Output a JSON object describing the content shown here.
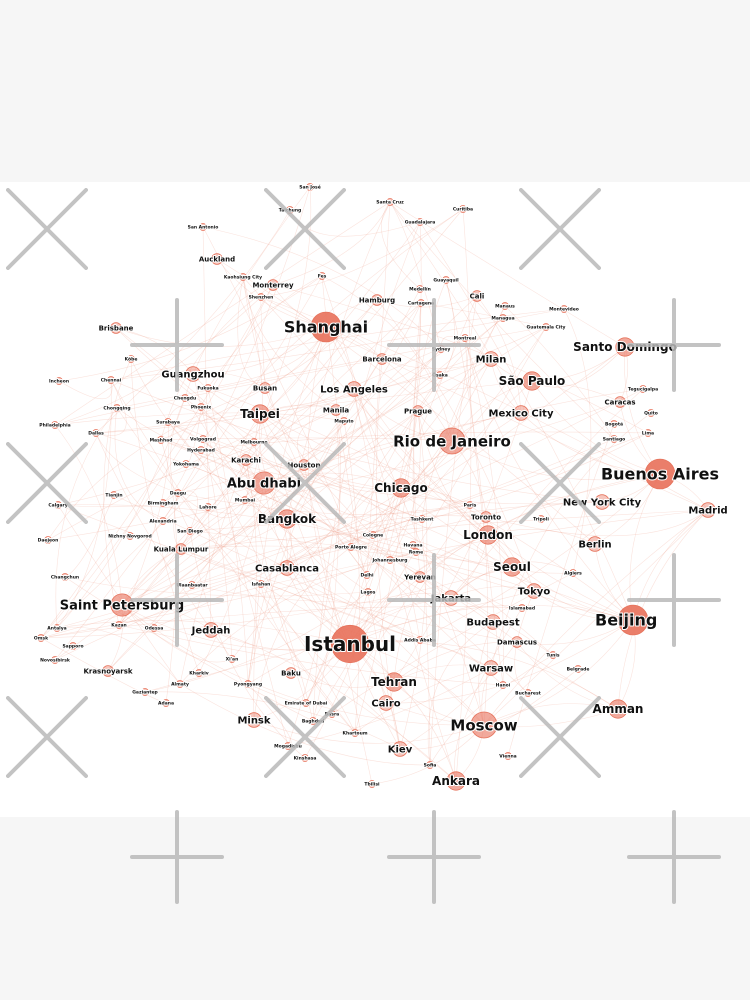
{
  "diagram": {
    "type": "network-graph",
    "node_color": "#e8705a",
    "edge_color": "#ec9a86",
    "background": "#ffffff",
    "page_background": "#f6f6f6",
    "watermark_icon": "cross-mark-icon",
    "nodes": [
      {
        "id": "istanbul",
        "label": "Istanbul",
        "size": 10
      },
      {
        "id": "shanghai",
        "label": "Shanghai",
        "size": 8
      },
      {
        "id": "beijing",
        "label": "Beijing",
        "size": 8
      },
      {
        "id": "buenos-aires",
        "label": "Buenos Aires",
        "size": 8
      },
      {
        "id": "moscow",
        "label": "Moscow",
        "size": 7
      },
      {
        "id": "rio-de-janeiro",
        "label": "Rio de Janeiro",
        "size": 7
      },
      {
        "id": "saint-petersburg",
        "label": "Saint Petersburg",
        "size": 6
      },
      {
        "id": "abu-dhabi",
        "label": "Abu dhabi",
        "size": 6
      },
      {
        "id": "amman",
        "label": "Amman",
        "size": 5
      },
      {
        "id": "bangkok",
        "label": "Bangkok",
        "size": 5
      },
      {
        "id": "chicago",
        "label": "Chicago",
        "size": 5
      },
      {
        "id": "london",
        "label": "London",
        "size": 5
      },
      {
        "id": "sao-paulo",
        "label": "São Paulo",
        "size": 5
      },
      {
        "id": "santo-domingo",
        "label": "Santo Domingo",
        "size": 5
      },
      {
        "id": "seoul",
        "label": "Seoul",
        "size": 5
      },
      {
        "id": "tehran",
        "label": "Tehran",
        "size": 5
      },
      {
        "id": "ankara",
        "label": "Ankara",
        "size": 5
      },
      {
        "id": "taipei",
        "label": "Taipei",
        "size": 5
      },
      {
        "id": "jakarta",
        "label": "Jakarta",
        "size": 4
      },
      {
        "id": "jeddah",
        "label": "Jeddah",
        "size": 4
      },
      {
        "id": "berlin",
        "label": "Berlin",
        "size": 4
      },
      {
        "id": "guangzhou",
        "label": "Guangzhou",
        "size": 4
      },
      {
        "id": "mexico-city",
        "label": "Mexico City",
        "size": 4
      },
      {
        "id": "milan",
        "label": "Milan",
        "size": 4
      },
      {
        "id": "los-angeles",
        "label": "Los Angeles",
        "size": 4
      },
      {
        "id": "casablanca",
        "label": "Casablanca",
        "size": 4
      },
      {
        "id": "warsaw",
        "label": "Warsaw",
        "size": 4
      },
      {
        "id": "budapest",
        "label": "Budapest",
        "size": 4
      },
      {
        "id": "madrid",
        "label": "Madrid",
        "size": 4
      },
      {
        "id": "tokyo",
        "label": "Tokyo",
        "size": 4
      },
      {
        "id": "minsk",
        "label": "Minsk",
        "size": 4
      },
      {
        "id": "kiev",
        "label": "Kiev",
        "size": 4
      },
      {
        "id": "cairo",
        "label": "Cairo",
        "size": 4
      },
      {
        "id": "new-york-city",
        "label": "New York City",
        "size": 4
      },
      {
        "id": "kuala-lumpur",
        "label": "Kuala Lumpur",
        "size": 3
      },
      {
        "id": "damascus",
        "label": "Damascus",
        "size": 3
      },
      {
        "id": "yerevan",
        "label": "Yerevan",
        "size": 3
      },
      {
        "id": "baku",
        "label": "Baku",
        "size": 3
      },
      {
        "id": "barcelona",
        "label": "Barcelona",
        "size": 3
      },
      {
        "id": "busan",
        "label": "Busan",
        "size": 3
      },
      {
        "id": "karachi",
        "label": "Karachi",
        "size": 3
      },
      {
        "id": "manila",
        "label": "Manila",
        "size": 3
      },
      {
        "id": "brisbane",
        "label": "Brisbane",
        "size": 3
      },
      {
        "id": "caracas",
        "label": "Caracas",
        "size": 3
      },
      {
        "id": "toronto",
        "label": "Toronto",
        "size": 3
      },
      {
        "id": "houston",
        "label": "Houston",
        "size": 3
      },
      {
        "id": "auckland",
        "label": "Auckland",
        "size": 3
      },
      {
        "id": "monterrey",
        "label": "Monterrey",
        "size": 3
      },
      {
        "id": "hamburg",
        "label": "Hamburg",
        "size": 3
      },
      {
        "id": "cali",
        "label": "Cali",
        "size": 3
      },
      {
        "id": "krasnoyarsk",
        "label": "Krasnoyarsk",
        "size": 3
      },
      {
        "id": "prague",
        "label": "Prague",
        "size": 3
      },
      {
        "id": "tbilisi",
        "label": "Tbilisi",
        "size": 2
      },
      {
        "id": "bucharest",
        "label": "Bucharest",
        "size": 2
      },
      {
        "id": "vienna",
        "label": "Vienna",
        "size": 2
      },
      {
        "id": "sofia",
        "label": "Sofia",
        "size": 2
      },
      {
        "id": "khartoum",
        "label": "Khartoum",
        "size": 2
      },
      {
        "id": "baghdad",
        "label": "Baghdad",
        "size": 2
      },
      {
        "id": "emirate-of-dubai",
        "label": "Emirate of Dubai",
        "size": 2
      },
      {
        "id": "isfahan",
        "label": "Isfahan",
        "size": 2
      },
      {
        "id": "lagos",
        "label": "Lagos",
        "size": 2
      },
      {
        "id": "delhi",
        "label": "Delhi",
        "size": 2
      },
      {
        "id": "havana",
        "label": "Havana",
        "size": 2
      },
      {
        "id": "cologne",
        "label": "Cologne",
        "size": 2
      },
      {
        "id": "johannesburg",
        "label": "Johannesburg",
        "size": 2
      },
      {
        "id": "tashkent",
        "label": "Tashkent",
        "size": 2
      },
      {
        "id": "paris",
        "label": "Paris",
        "size": 2
      },
      {
        "id": "tripoli",
        "label": "Tripoli",
        "size": 2
      },
      {
        "id": "algiers",
        "label": "Algiers",
        "size": 2
      },
      {
        "id": "islamabad",
        "label": "Islamabad",
        "size": 2
      },
      {
        "id": "tunis",
        "label": "Tunis",
        "size": 2
      },
      {
        "id": "belgrade",
        "label": "Belgrade",
        "size": 2
      },
      {
        "id": "hanoi",
        "label": "Hanoi",
        "size": 2
      },
      {
        "id": "santiago",
        "label": "Santiago",
        "size": 2
      },
      {
        "id": "bogota",
        "label": "Bogotá",
        "size": 2
      },
      {
        "id": "quito",
        "label": "Quito",
        "size": 2
      },
      {
        "id": "lima",
        "label": "Lima",
        "size": 2
      },
      {
        "id": "tegucigalpa",
        "label": "Tegucigalpa",
        "size": 2
      },
      {
        "id": "guatemala-city",
        "label": "Guatemala City",
        "size": 2
      },
      {
        "id": "montevideo",
        "label": "Montevideo",
        "size": 2
      },
      {
        "id": "montreal",
        "label": "Montreal",
        "size": 2
      },
      {
        "id": "sydney",
        "label": "Sydney",
        "size": 2
      },
      {
        "id": "osaka",
        "label": "Ōsaka",
        "size": 2
      },
      {
        "id": "managua",
        "label": "Managua",
        "size": 2
      },
      {
        "id": "manaus",
        "label": "Manaus",
        "size": 2
      },
      {
        "id": "medellin",
        "label": "Medellín",
        "size": 2
      },
      {
        "id": "guayaquil",
        "label": "Guayaquil",
        "size": 2
      },
      {
        "id": "cartagena",
        "label": "Cartagena",
        "size": 2
      },
      {
        "id": "curitiba",
        "label": "Curitiba",
        "size": 2
      },
      {
        "id": "guadalajara",
        "label": "Guadalajara",
        "size": 2
      },
      {
        "id": "santa-cruz",
        "label": "Santa Cruz",
        "size": 2
      },
      {
        "id": "san-jose",
        "label": "San José",
        "size": 2
      },
      {
        "id": "san-antonio",
        "label": "San Antonio",
        "size": 2
      },
      {
        "id": "taichung",
        "label": "Taichung",
        "size": 2
      },
      {
        "id": "kaohsiung",
        "label": "Kaohsiung City",
        "size": 2
      },
      {
        "id": "fes",
        "label": "Fes",
        "size": 2
      },
      {
        "id": "shenzhen",
        "label": "Shenzhen",
        "size": 2
      },
      {
        "id": "xian",
        "label": "Xi'an",
        "size": 2
      },
      {
        "id": "pyongyang",
        "label": "Pyongyang",
        "size": 2
      },
      {
        "id": "kharkiv",
        "label": "Kharkiv",
        "size": 2
      },
      {
        "id": "almaty",
        "label": "Almaty",
        "size": 2
      },
      {
        "id": "adana",
        "label": "Adana",
        "size": 2
      },
      {
        "id": "odessa",
        "label": "Odessa",
        "size": 2
      },
      {
        "id": "kazan",
        "label": "Kazan",
        "size": 2
      },
      {
        "id": "antalya",
        "label": "Antalya",
        "size": 2
      },
      {
        "id": "omsk",
        "label": "Omsk",
        "size": 2
      },
      {
        "id": "novosibirsk",
        "label": "Novosibirsk",
        "size": 2
      },
      {
        "id": "ulaanbaatar",
        "label": "Ulaanbaatar",
        "size": 2
      },
      {
        "id": "daejeon",
        "label": "Daejeon",
        "size": 2
      },
      {
        "id": "changchun",
        "label": "Changchun",
        "size": 2
      },
      {
        "id": "calgary",
        "label": "Calgary",
        "size": 2
      },
      {
        "id": "tianjin",
        "label": "Tianjin",
        "size": 2
      },
      {
        "id": "nizhny",
        "label": "Nizhny Novgorod",
        "size": 2
      },
      {
        "id": "alexandria",
        "label": "Alexandria",
        "size": 2
      },
      {
        "id": "birmingham",
        "label": "Birmingham",
        "size": 2
      },
      {
        "id": "san-diego",
        "label": "San Diego",
        "size": 2
      },
      {
        "id": "daegu",
        "label": "Daegu",
        "size": 2
      },
      {
        "id": "mumbai",
        "label": "Mumbai",
        "size": 2
      },
      {
        "id": "lahore",
        "label": "Lahore",
        "size": 2
      },
      {
        "id": "mashhad",
        "label": "Mashhad",
        "size": 2
      },
      {
        "id": "volgograd",
        "label": "Volgograd",
        "size": 2
      },
      {
        "id": "hyderabad",
        "label": "Hyderabad",
        "size": 2
      },
      {
        "id": "yokohama",
        "label": "Yokohama",
        "size": 2
      },
      {
        "id": "dallas",
        "label": "Dallas",
        "size": 2
      },
      {
        "id": "philadelphia",
        "label": "Philadelphia",
        "size": 2
      },
      {
        "id": "chongqing",
        "label": "Chongqing",
        "size": 2
      },
      {
        "id": "chennai",
        "label": "Chennai",
        "size": 2
      },
      {
        "id": "incheon",
        "label": "Incheon",
        "size": 2
      },
      {
        "id": "kobe",
        "label": "Kōbe",
        "size": 2
      },
      {
        "id": "surabaya",
        "label": "Surabaya",
        "size": 2
      },
      {
        "id": "phoenix",
        "label": "Phoenix",
        "size": 2
      },
      {
        "id": "chengdu",
        "label": "Chengdu",
        "size": 2
      },
      {
        "id": "fukuoka",
        "label": "Fukuoka",
        "size": 2
      },
      {
        "id": "melbourne",
        "label": "Melbourne",
        "size": 2
      },
      {
        "id": "maputo",
        "label": "Maputo",
        "size": 2
      },
      {
        "id": "rome",
        "label": "Rome",
        "size": 2
      },
      {
        "id": "porto-alegre",
        "label": "Porto Alegre",
        "size": 2
      },
      {
        "id": "addis-ababa",
        "label": "Addis Ababa",
        "size": 2
      },
      {
        "id": "mogadishu",
        "label": "Mogadishu",
        "size": 2
      },
      {
        "id": "kinshasa",
        "label": "Kinshasa",
        "size": 2
      },
      {
        "id": "basra",
        "label": "Basra",
        "size": 2
      },
      {
        "id": "sapporo",
        "label": "Sapporo",
        "size": 2
      },
      {
        "id": "gaziantep",
        "label": "Gaziantep",
        "size": 2
      }
    ],
    "edges": [
      [
        "istanbul",
        "beijing"
      ],
      [
        "istanbul",
        "moscow"
      ],
      [
        "istanbul",
        "shanghai"
      ],
      [
        "istanbul",
        "tehran"
      ],
      [
        "istanbul",
        "ankara"
      ],
      [
        "istanbul",
        "saint-petersburg"
      ],
      [
        "istanbul",
        "jeddah"
      ],
      [
        "istanbul",
        "london"
      ],
      [
        "istanbul",
        "amman"
      ],
      [
        "istanbul",
        "cairo"
      ],
      [
        "istanbul",
        "baku"
      ],
      [
        "istanbul",
        "abu-dhabi"
      ],
      [
        "istanbul",
        "buenos-aires"
      ],
      [
        "istanbul",
        "rio-de-janeiro"
      ],
      [
        "istanbul",
        "kiev"
      ],
      [
        "istanbul",
        "minsk"
      ],
      [
        "istanbul",
        "warsaw"
      ],
      [
        "istanbul",
        "jakarta"
      ],
      [
        "istanbul",
        "bangkok"
      ],
      [
        "istanbul",
        "casablanca"
      ],
      [
        "beijing",
        "shanghai"
      ],
      [
        "beijing",
        "seoul"
      ],
      [
        "beijing",
        "tokyo"
      ],
      [
        "beijing",
        "moscow"
      ],
      [
        "beijing",
        "amman"
      ],
      [
        "beijing",
        "buenos-aires"
      ],
      [
        "beijing",
        "madrid"
      ],
      [
        "beijing",
        "berlin"
      ],
      [
        "beijing",
        "london"
      ],
      [
        "beijing",
        "damascus"
      ],
      [
        "shanghai",
        "taipei"
      ],
      [
        "shanghai",
        "guangzhou"
      ],
      [
        "shanghai",
        "busan"
      ],
      [
        "shanghai",
        "los-angeles"
      ],
      [
        "shanghai",
        "auckland"
      ],
      [
        "shanghai",
        "rio-de-janeiro"
      ],
      [
        "shanghai",
        "barcelona"
      ],
      [
        "shanghai",
        "monterrey"
      ],
      [
        "shanghai",
        "hamburg"
      ],
      [
        "shanghai",
        "brisbane"
      ],
      [
        "buenos-aires",
        "rio-de-janeiro"
      ],
      [
        "buenos-aires",
        "sao-paulo"
      ],
      [
        "buenos-aires",
        "santo-domingo"
      ],
      [
        "buenos-aires",
        "madrid"
      ],
      [
        "buenos-aires",
        "new-york-city"
      ],
      [
        "buenos-aires",
        "caracas"
      ],
      [
        "buenos-aires",
        "mexico-city"
      ],
      [
        "buenos-aires",
        "berlin"
      ],
      [
        "rio-de-janeiro",
        "sao-paulo"
      ],
      [
        "rio-de-janeiro",
        "milan"
      ],
      [
        "rio-de-janeiro",
        "chicago"
      ],
      [
        "rio-de-janeiro",
        "mexico-city"
      ],
      [
        "rio-de-janeiro",
        "los-angeles"
      ],
      [
        "rio-de-janeiro",
        "prague"
      ],
      [
        "rio-de-janeiro",
        "london"
      ],
      [
        "moscow",
        "ankara"
      ],
      [
        "moscow",
        "kiev"
      ],
      [
        "moscow",
        "tehran"
      ],
      [
        "moscow",
        "warsaw"
      ],
      [
        "moscow",
        "amman"
      ],
      [
        "moscow",
        "minsk"
      ],
      [
        "moscow",
        "saint-petersburg"
      ],
      [
        "moscow",
        "tbilisi"
      ],
      [
        "moscow",
        "budapest"
      ],
      [
        "saint-petersburg",
        "kuala-lumpur"
      ],
      [
        "saint-petersburg",
        "krasnoyarsk"
      ],
      [
        "saint-petersburg",
        "jeddah"
      ],
      [
        "saint-petersburg",
        "bangkok"
      ],
      [
        "abu-dhabi",
        "bangkok"
      ],
      [
        "abu-dhabi",
        "karachi"
      ],
      [
        "abu-dhabi",
        "taipei"
      ],
      [
        "abu-dhabi",
        "casablanca"
      ],
      [
        "abu-dhabi",
        "chicago"
      ],
      [
        "chicago",
        "london"
      ],
      [
        "chicago",
        "los-angeles"
      ],
      [
        "chicago",
        "houston"
      ],
      [
        "chicago",
        "toronto"
      ],
      [
        "london",
        "seoul"
      ],
      [
        "london",
        "berlin"
      ],
      [
        "london",
        "new-york-city"
      ],
      [
        "london",
        "jakarta"
      ],
      [
        "jakarta",
        "tokyo"
      ],
      [
        "jakarta",
        "seoul"
      ],
      [
        "jakarta",
        "budapest"
      ],
      [
        "jakarta",
        "yerevan"
      ],
      [
        "tehran",
        "cairo"
      ],
      [
        "tehran",
        "baku"
      ],
      [
        "tehran",
        "damascus"
      ],
      [
        "tehran",
        "warsaw"
      ],
      [
        "amman",
        "damascus"
      ],
      [
        "amman",
        "cairo"
      ],
      [
        "amman",
        "madrid"
      ],
      [
        "bangkok",
        "kuala-lumpur"
      ],
      [
        "bangkok",
        "taipei"
      ],
      [
        "bangkok",
        "casablanca"
      ],
      [
        "santo-domingo",
        "caracas"
      ],
      [
        "santo-domingo",
        "sao-paulo"
      ],
      [
        "mexico-city",
        "milan"
      ],
      [
        "taipei",
        "guangzhou"
      ],
      [
        "taipei",
        "manila"
      ],
      [
        "guangzhou",
        "busan"
      ],
      [
        "milan",
        "barcelona"
      ],
      [
        "sao-paulo",
        "milan"
      ],
      [
        "cali",
        "hamburg"
      ],
      [
        "brisbane",
        "guangzhou"
      ]
    ]
  }
}
